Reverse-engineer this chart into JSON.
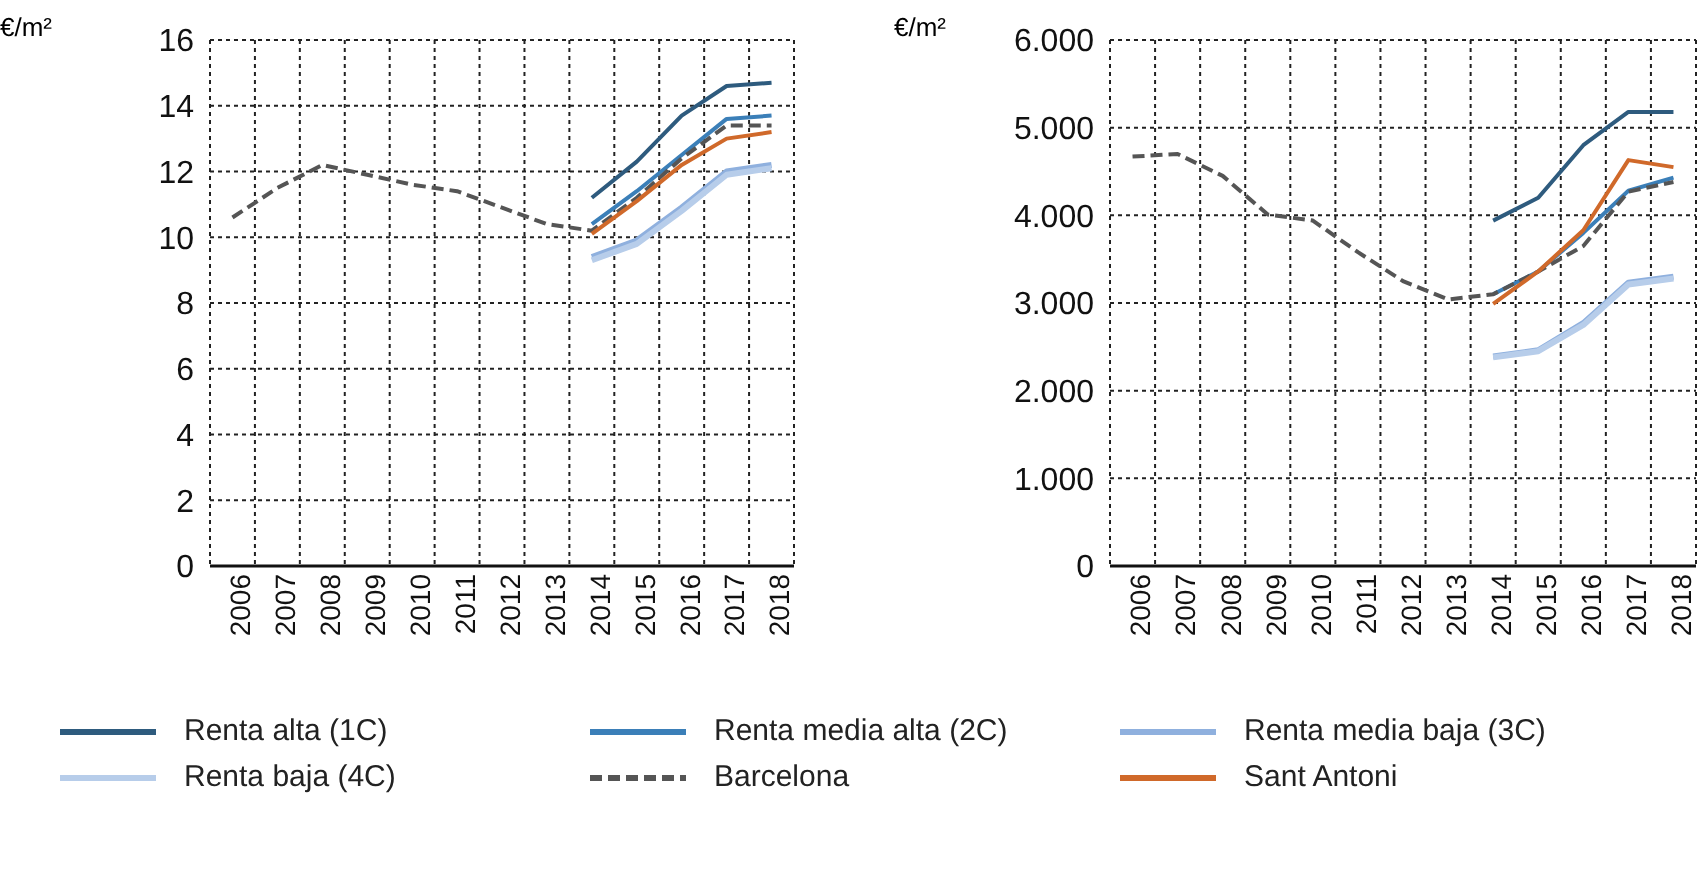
{
  "chart_data": [
    {
      "type": "line",
      "ylabel": "€/m²",
      "categories": [
        "2006",
        "2007",
        "2008",
        "2009",
        "2010",
        "2011",
        "2012",
        "2013",
        "2014",
        "2015",
        "2016",
        "2017",
        "2018"
      ],
      "ylim": [
        0,
        16
      ],
      "yticks": [
        0,
        2,
        4,
        6,
        8,
        10,
        12,
        14,
        16
      ],
      "grid": true,
      "legend": "bottom",
      "marker": "none",
      "series": [
        {
          "name": "Renta alta (1C)",
          "color": "#2e5b7e",
          "values": [
            null,
            null,
            null,
            null,
            null,
            null,
            null,
            null,
            11.2,
            12.3,
            13.7,
            14.6,
            14.7
          ]
        },
        {
          "name": "Renta media alta (2C)",
          "color": "#3b7fb8",
          "values": [
            null,
            null,
            null,
            null,
            null,
            null,
            null,
            null,
            10.4,
            11.4,
            12.5,
            13.6,
            13.7
          ]
        },
        {
          "name": "Renta media baja (3C)",
          "color": "#8fb0de",
          "values": [
            null,
            null,
            null,
            null,
            null,
            null,
            null,
            null,
            9.4,
            9.9,
            10.9,
            12.0,
            12.2
          ]
        },
        {
          "name": "Renta baja (4C)",
          "color": "#b7cdea",
          "values": [
            null,
            null,
            null,
            null,
            null,
            null,
            null,
            null,
            9.3,
            9.8,
            10.8,
            11.9,
            12.1
          ]
        },
        {
          "name": "Barcelona",
          "color": "#555555",
          "line_style": "dashed",
          "values": [
            10.6,
            11.5,
            12.2,
            11.9,
            11.6,
            11.4,
            10.9,
            10.4,
            10.2,
            11.2,
            12.4,
            13.4,
            13.4
          ]
        },
        {
          "name": "Sant Antoni",
          "color": "#d0692a",
          "values": [
            null,
            null,
            null,
            null,
            null,
            null,
            null,
            null,
            10.1,
            11.1,
            12.2,
            13.0,
            13.2
          ]
        }
      ]
    },
    {
      "type": "line",
      "ylabel": "€/m²",
      "categories": [
        "2006",
        "2007",
        "2008",
        "2009",
        "2010",
        "2011",
        "2012",
        "2013",
        "2014",
        "2015",
        "2016",
        "2017",
        "2018"
      ],
      "ylim": [
        0,
        6000
      ],
      "yticks": [
        0,
        {
          "value": 1000,
          "label": "1.000"
        },
        {
          "value": 2000,
          "label": "2.000"
        },
        {
          "value": 3000,
          "label": "3.000"
        },
        {
          "value": 4000,
          "label": "4.000"
        },
        {
          "value": 5000,
          "label": "5.000"
        },
        {
          "value": 6000,
          "label": "6.000"
        }
      ],
      "grid": true,
      "marker": "none",
      "series": [
        {
          "color": "#2e5b7e",
          "values": [
            null,
            null,
            null,
            null,
            null,
            null,
            null,
            null,
            3940,
            4200,
            4800,
            5180,
            5180
          ]
        },
        {
          "color": "#3b7fb8",
          "values": [
            null,
            null,
            null,
            null,
            null,
            null,
            null,
            null,
            3100,
            3360,
            3800,
            4280,
            4430
          ]
        },
        {
          "color": "#8fb0de",
          "values": [
            null,
            null,
            null,
            null,
            null,
            null,
            null,
            null,
            2390,
            2460,
            2770,
            3230,
            3300
          ]
        },
        {
          "color": "#b7cdea",
          "values": [
            null,
            null,
            null,
            null,
            null,
            null,
            null,
            null,
            2380,
            2450,
            2750,
            3210,
            3280
          ]
        },
        {
          "color": "#555555",
          "line_style": "dashed",
          "values": [
            4670,
            4700,
            4450,
            4010,
            3940,
            3580,
            3250,
            3040,
            3100,
            3360,
            3650,
            4270,
            4380
          ]
        },
        {
          "color": "#d0692a",
          "values": [
            null,
            null,
            null,
            null,
            null,
            null,
            null,
            null,
            2990,
            3360,
            3830,
            4630,
            4550
          ]
        }
      ]
    }
  ]
}
